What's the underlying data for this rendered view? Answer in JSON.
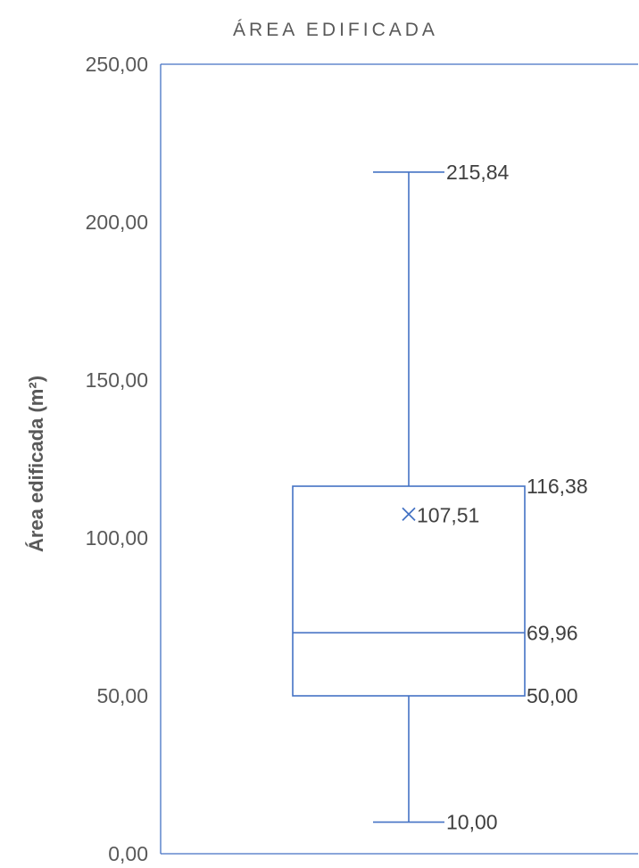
{
  "chart_data": {
    "type": "boxplot",
    "title": "ÁREA EDIFICADA",
    "xlabel": "",
    "ylabel": "Área edificada (m²)",
    "ylim": [
      0,
      250
    ],
    "yticks": [
      0,
      50,
      100,
      150,
      200,
      250
    ],
    "ytick_labels": [
      "0,00",
      "50,00",
      "100,00",
      "150,00",
      "200,00",
      "250,00"
    ],
    "grid": false,
    "legend": "none",
    "colors": {
      "series": "#4472c4",
      "text": "#595959",
      "label_text": "#404040"
    },
    "box": {
      "min": 10.0,
      "q1": 50.0,
      "median": 69.96,
      "q3": 116.38,
      "max": 215.84,
      "mean": 107.51
    },
    "labels": {
      "min": "10,00",
      "q1": "50,00",
      "median": "69,96",
      "q3": "116,38",
      "max": "215,84",
      "mean": "107,51"
    }
  }
}
